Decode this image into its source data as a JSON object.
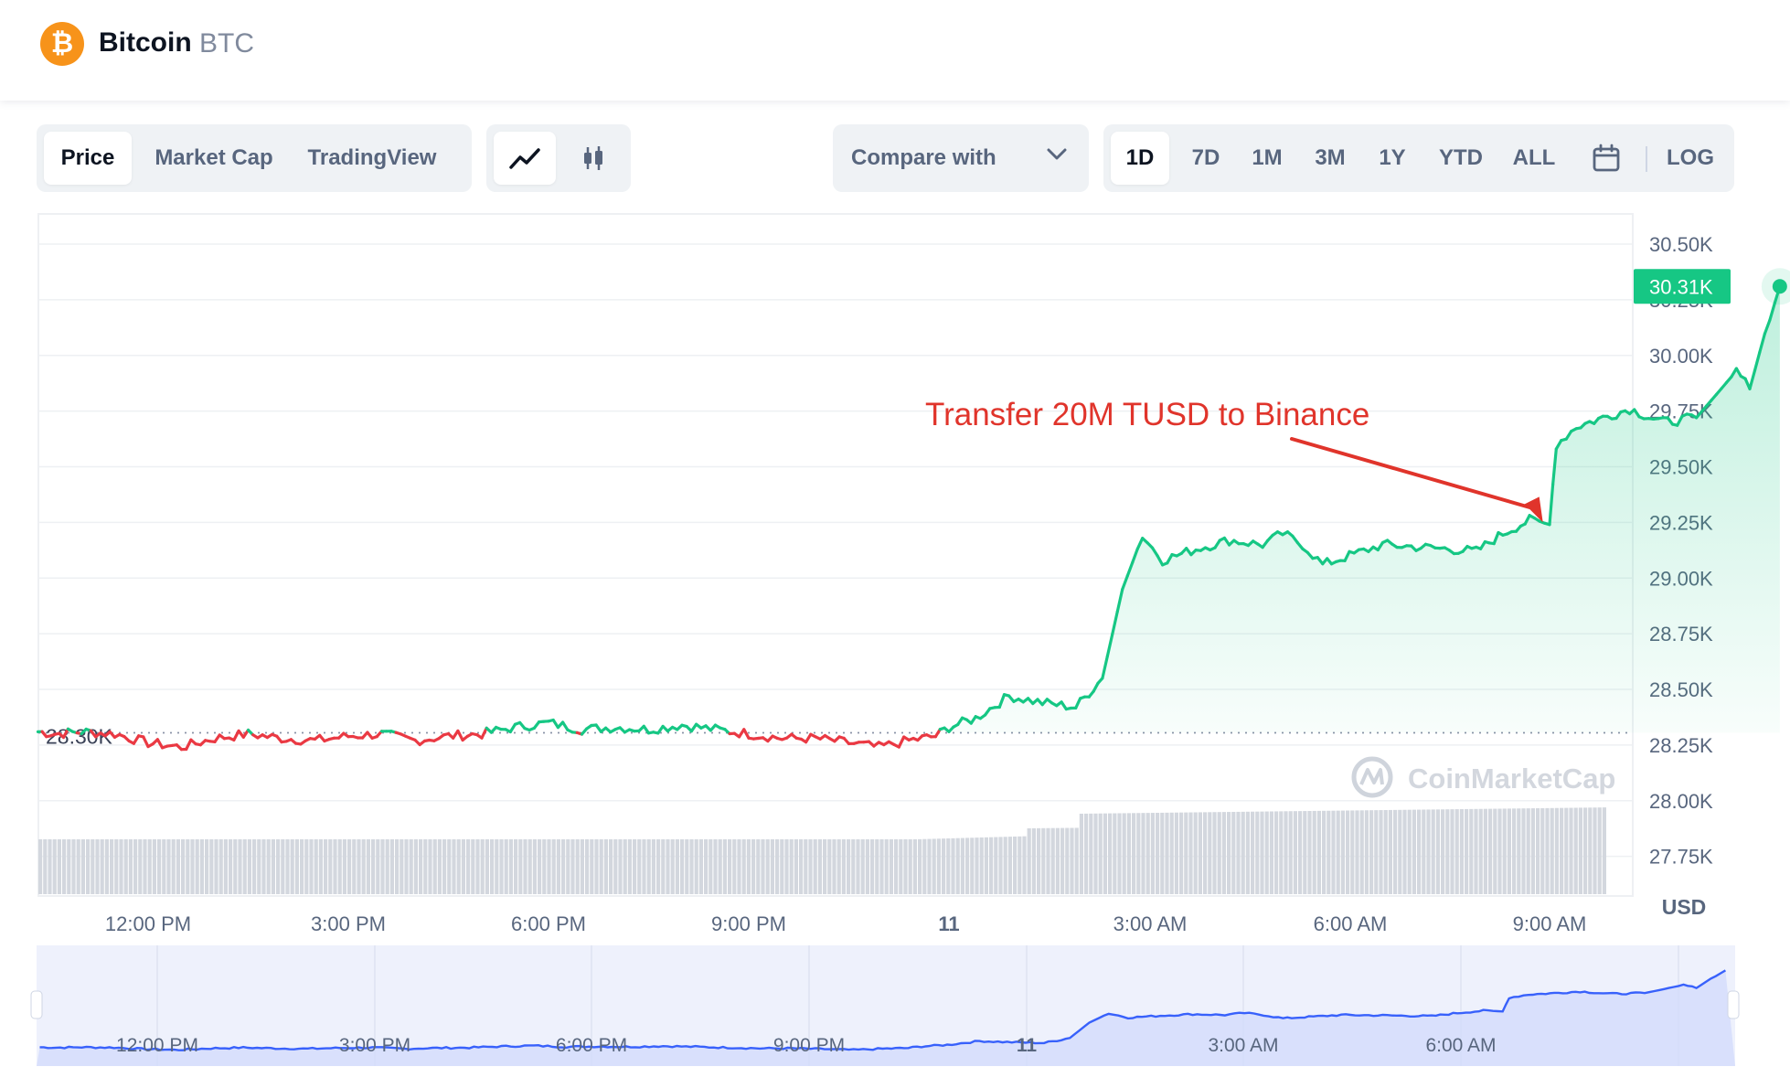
{
  "header": {
    "coin_name": "Bitcoin",
    "coin_symbol": "BTC",
    "logo_glyph": "₿",
    "logo_color": "#f7931a"
  },
  "view_tabs": [
    "Price",
    "Market Cap",
    "TradingView"
  ],
  "active_view": "Price",
  "chart_style_buttons": [
    "line-chart-icon",
    "candlestick-icon"
  ],
  "compare": {
    "label": "Compare with"
  },
  "ranges": [
    "1D",
    "7D",
    "1M",
    "3M",
    "1Y",
    "YTD",
    "ALL"
  ],
  "active_range": "1D",
  "log_label": "LOG",
  "colors": {
    "up": "#16c784",
    "down": "#ea3943",
    "annotation": "#e0342b",
    "navigator": "#3861fb"
  },
  "chart_data": {
    "type": "line",
    "currency_label": "USD",
    "open_price_label": "28.30K",
    "current_price_label": "30.31K",
    "ylim": [
      27.6,
      30.6
    ],
    "y_ticks": [
      "27.75K",
      "28.00K",
      "28.25K",
      "28.50K",
      "28.75K",
      "29.00K",
      "29.25K",
      "29.50K",
      "29.75K",
      "30.00K",
      "30.25K",
      "30.50K"
    ],
    "x_ticks": [
      "12:00 PM",
      "3:00 PM",
      "6:00 PM",
      "9:00 PM",
      "11",
      "3:00 AM",
      "6:00 AM",
      "9:00 AM"
    ],
    "x_range_hours": [
      10.3,
      33.8
    ],
    "series": [
      {
        "values": [
          [
            10.35,
            28.31
          ],
          [
            10.6,
            28.3
          ],
          [
            11.0,
            28.31
          ],
          [
            11.5,
            28.3
          ],
          [
            12.0,
            28.26
          ],
          [
            12.5,
            28.24
          ],
          [
            13.0,
            28.28
          ],
          [
            13.5,
            28.3
          ],
          [
            14.0,
            28.28
          ],
          [
            14.5,
            28.27
          ],
          [
            15.0,
            28.29
          ],
          [
            15.5,
            28.3
          ],
          [
            16.0,
            28.27
          ],
          [
            16.5,
            28.29
          ],
          [
            17.0,
            28.3
          ],
          [
            17.5,
            28.33
          ],
          [
            18.0,
            28.35
          ],
          [
            18.5,
            28.32
          ],
          [
            19.0,
            28.33
          ],
          [
            19.5,
            28.32
          ],
          [
            20.0,
            28.34
          ],
          [
            20.5,
            28.32
          ],
          [
            21.0,
            28.3
          ],
          [
            21.5,
            28.28
          ],
          [
            22.0,
            28.28
          ],
          [
            22.5,
            28.26
          ],
          [
            22.95,
            28.24
          ],
          [
            23.4,
            28.27
          ],
          [
            23.8,
            28.29
          ],
          [
            24.0,
            28.33
          ],
          [
            24.4,
            28.37
          ],
          [
            24.9,
            28.47
          ],
          [
            25.4,
            28.44
          ],
          [
            25.9,
            28.42
          ],
          [
            26.3,
            28.55
          ],
          [
            26.6,
            28.95
          ],
          [
            26.9,
            29.19
          ],
          [
            27.2,
            29.08
          ],
          [
            27.7,
            29.13
          ],
          [
            28.2,
            29.17
          ],
          [
            28.7,
            29.15
          ],
          [
            29.0,
            29.2
          ],
          [
            29.3,
            29.15
          ],
          [
            29.6,
            29.06
          ],
          [
            30.0,
            29.1
          ],
          [
            30.5,
            29.15
          ],
          [
            31.0,
            29.14
          ],
          [
            31.5,
            29.13
          ],
          [
            31.9,
            29.12
          ],
          [
            32.3,
            29.2
          ],
          [
            32.7,
            29.26
          ],
          [
            33.0,
            29.24
          ],
          [
            33.1,
            29.6
          ],
          [
            33.4,
            29.68
          ],
          [
            33.8,
            29.72
          ],
          [
            34.2,
            29.76
          ],
          [
            34.7,
            29.7
          ],
          [
            35.2,
            29.72
          ],
          [
            35.8,
            29.93
          ],
          [
            36.0,
            29.85
          ],
          [
            36.3,
            30.18
          ],
          [
            36.45,
            30.31
          ]
        ]
      }
    ],
    "annotation": {
      "text": "Transfer 20M TUSD to Binance",
      "at": [
        32.9,
        29.25
      ]
    },
    "watermark": "CoinMarketCap",
    "navigator": {
      "x_ticks": [
        "12:00 PM",
        "3:00 PM",
        "6:00 PM",
        "9:00 PM",
        "11",
        "3:00 AM",
        "6:00 AM"
      ]
    }
  }
}
